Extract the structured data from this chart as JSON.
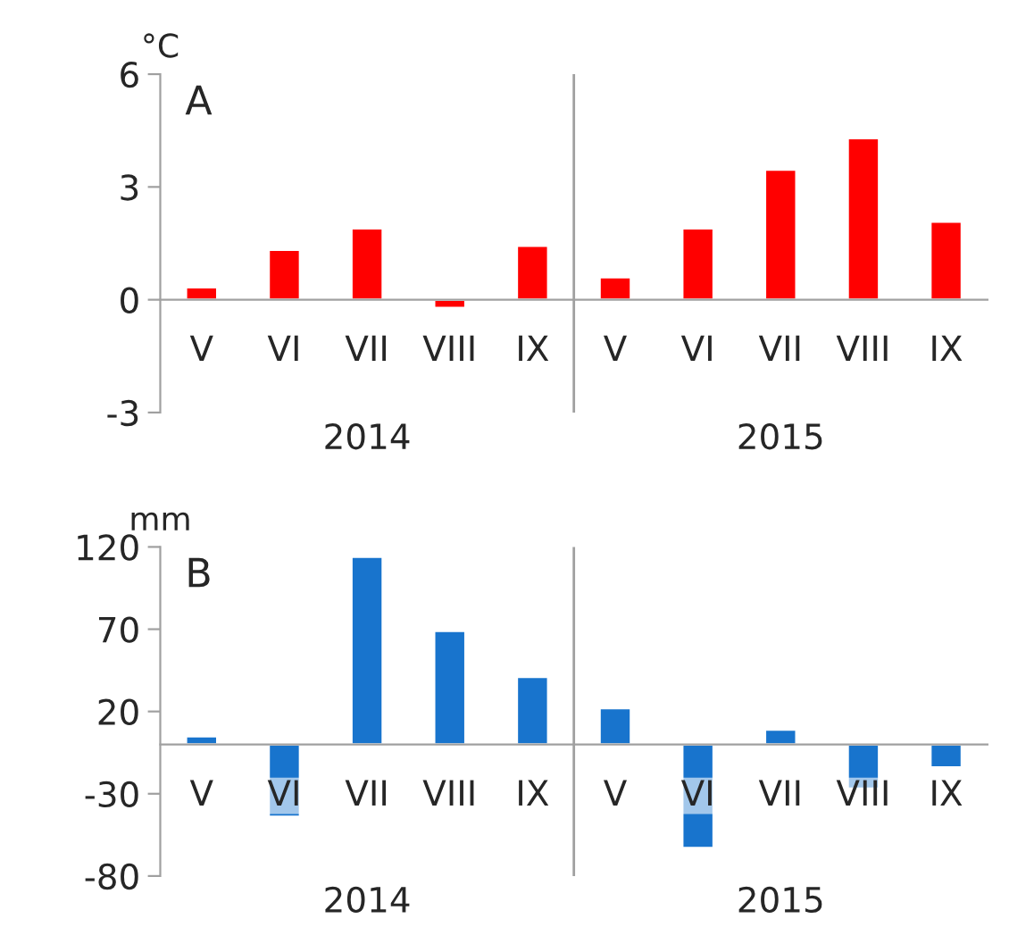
{
  "chart_data": [
    {
      "type": "bar",
      "title": "A",
      "ylabel": "°C",
      "categories": [
        "V",
        "VI",
        "VII",
        "VIII",
        "IX",
        "V",
        "VI",
        "VII",
        "VIII",
        "IX"
      ],
      "values": [
        0.33,
        1.33,
        1.9,
        -0.22,
        1.44,
        0.6,
        1.9,
        3.46,
        4.3,
        2.08
      ],
      "color": "#ff0000",
      "ylim": [
        -3,
        6
      ],
      "yticks": [
        -3,
        0,
        3,
        6
      ],
      "grid": false,
      "annotations": [
        "2014",
        "2015"
      ]
    },
    {
      "type": "bar",
      "title": "B",
      "ylabel": "mm",
      "categories": [
        "V",
        "VI",
        "VII",
        "VIII",
        "IX",
        "V",
        "VI",
        "VII",
        "VIII",
        "IX"
      ],
      "values": [
        5,
        -44,
        114,
        69,
        41,
        22,
        -63,
        9,
        -27,
        -14
      ],
      "color": "#1874cd",
      "ylim": [
        -80,
        120
      ],
      "yticks": [
        -80,
        -30,
        20,
        70,
        120
      ],
      "grid": false,
      "annotations": [
        "2014",
        "2015"
      ]
    }
  ]
}
